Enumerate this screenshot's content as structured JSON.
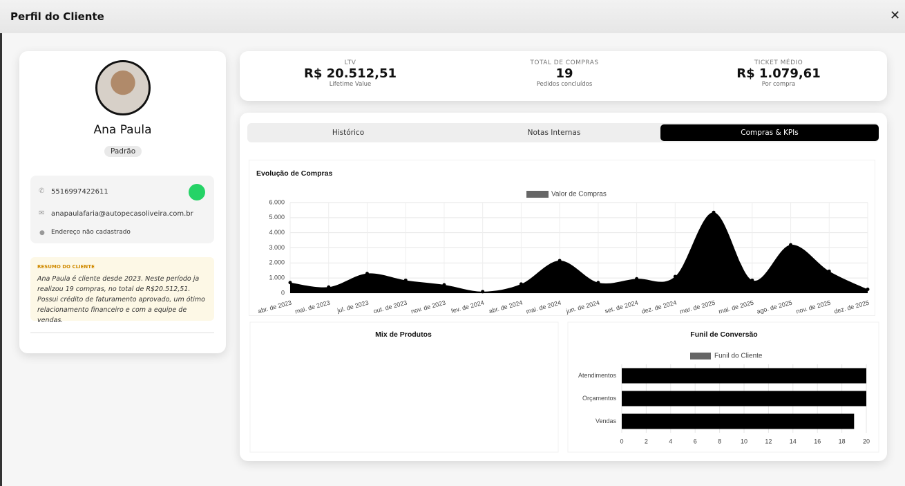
{
  "header": {
    "title": "Perfil do Cliente"
  },
  "profile": {
    "name": "Ana Paula",
    "badge": "Padrão",
    "phone": "5516997422611",
    "email": "anapaulafaria@autopecasoliveira.com.br",
    "address": "Endereço não cadastrado",
    "summary_title": "RESUMO DO CLIENTE",
    "summary": "Ana Paula é cliente desde 2023. Neste período ja realizou 19 compras, no total de R$20.512,51. Possui crédito de faturamento aprovado, um ótimo relacionamento financeiro e com a equipe de vendas."
  },
  "kpis": [
    {
      "label": "LTV",
      "value": "R$ 20.512,51",
      "sub": "Lifetime Value"
    },
    {
      "label": "TOTAL DE COMPRAS",
      "value": "19",
      "sub": "Pedidos concluídos"
    },
    {
      "label": "TICKET MÉDIO",
      "value": "R$ 1.079,61",
      "sub": "Por compra"
    }
  ],
  "tabs": [
    "Histórico",
    "Notas Internas",
    "Compras & KPIs"
  ],
  "chart_data": [
    {
      "type": "area",
      "title": "Evolução de Compras",
      "categories": [
        "abr. de 2023",
        "mai. de 2023",
        "jul. de 2023",
        "out. de 2023",
        "nov. de 2023",
        "fev. de 2024",
        "abr. de 2024",
        "mai. de 2024",
        "jun. de 2024",
        "set. de 2024",
        "dez. de 2024",
        "mar. de 2025",
        "mai. de 2025",
        "ago. de 2025",
        "nov. de 2025",
        "dez. de 2025"
      ],
      "series": [
        {
          "name": "Valor de Compras",
          "color": "#000000",
          "values": [
            700,
            400,
            1300,
            850,
            550,
            100,
            600,
            2150,
            700,
            950,
            1100,
            5350,
            850,
            3200,
            1450,
            250
          ]
        }
      ],
      "ylim": [
        0,
        6000
      ],
      "yticks": [
        0,
        {
          "value": 1000,
          "label": "1.000"
        },
        {
          "value": 2000,
          "label": "2.000"
        },
        {
          "value": 3000,
          "label": "3.000"
        },
        {
          "value": 4000,
          "label": "4.000"
        },
        {
          "value": 5000,
          "label": "5.000"
        },
        {
          "value": 6000,
          "label": "6.000"
        }
      ],
      "grid": true
    },
    {
      "title": "Mix de Produtos"
    },
    {
      "type": "hbar",
      "title": "Funil de Conversão",
      "categories": [
        "Atendimentos",
        "Orçamentos",
        "Vendas"
      ],
      "series": [
        {
          "name": "Funil do Cliente",
          "color": "#000000",
          "values": [
            20,
            20,
            19
          ]
        }
      ],
      "xlim": [
        0,
        20
      ],
      "xticks": [
        0,
        2,
        4,
        6,
        8,
        10,
        12,
        14,
        16,
        18,
        20
      ],
      "grid": true
    }
  ]
}
